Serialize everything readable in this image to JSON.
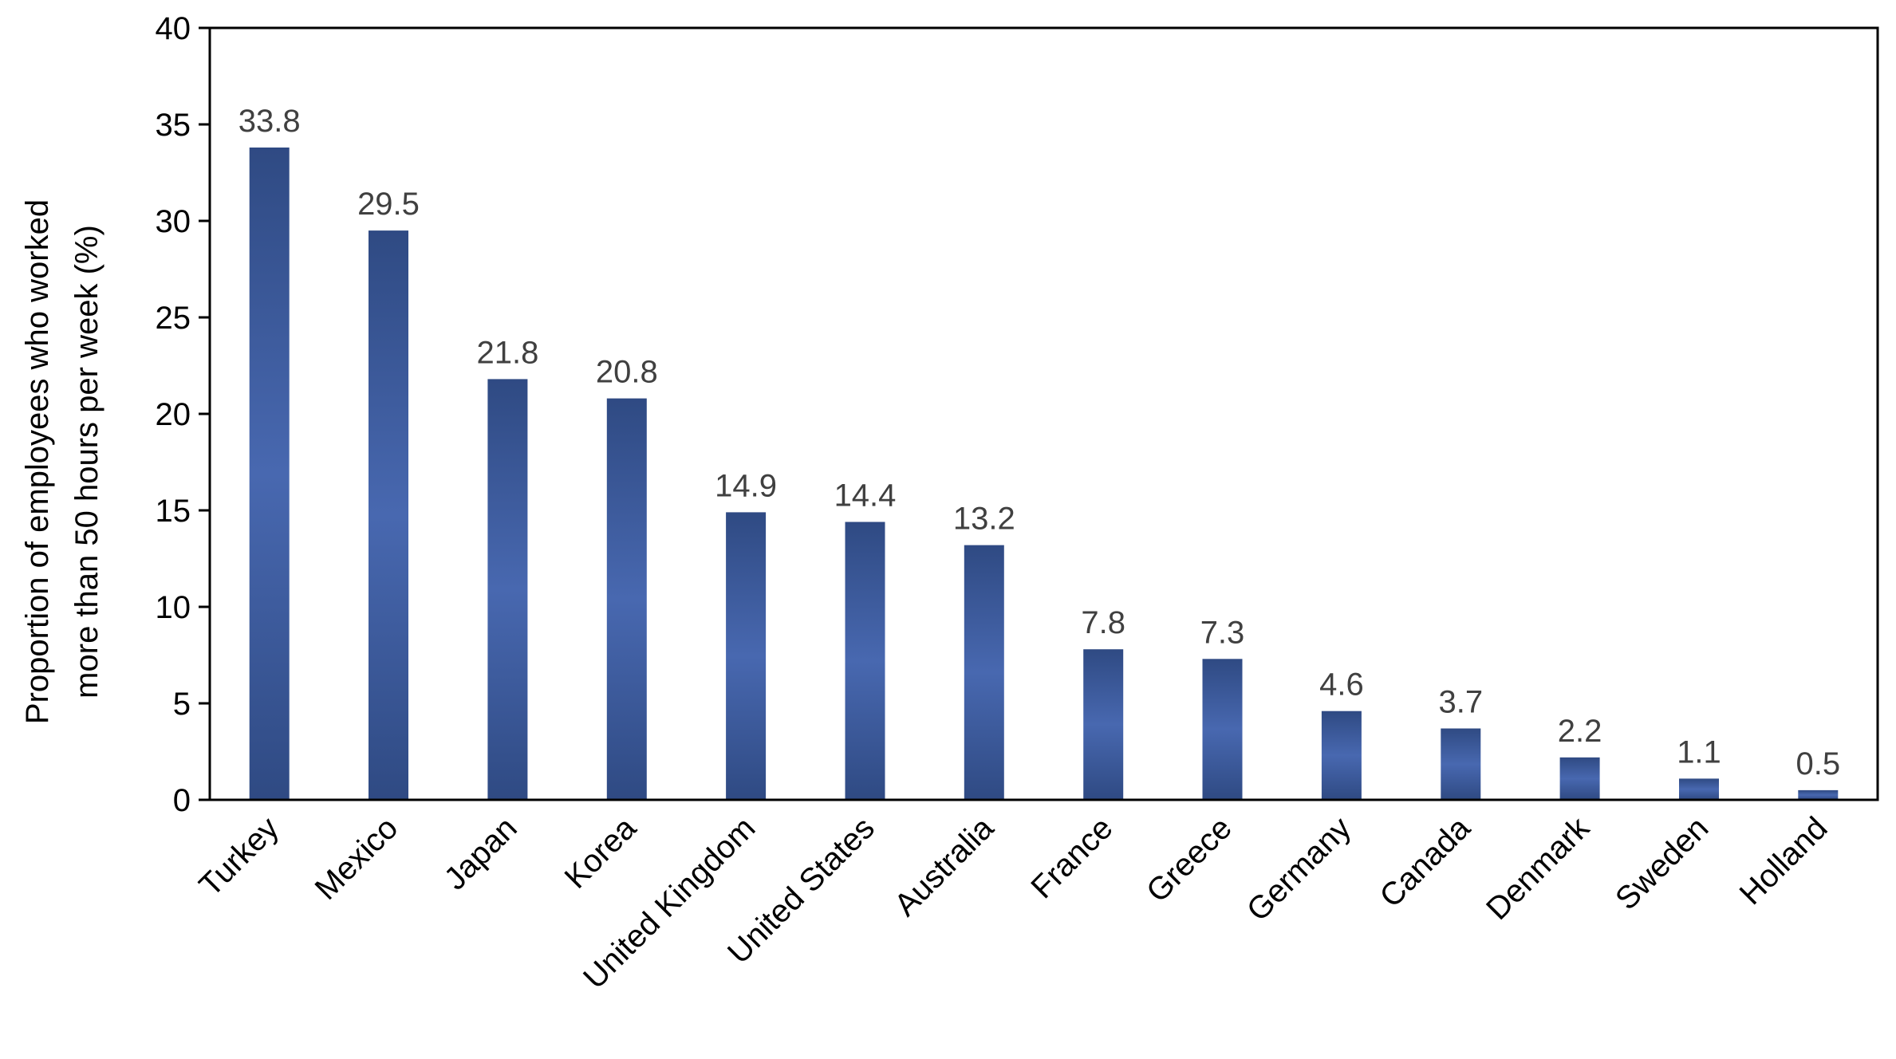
{
  "chart_data": {
    "type": "bar",
    "ylabel_lines": [
      "Proportion of employees who worked",
      "more than 50 hours per week (%)"
    ],
    "categories": [
      "Turkey",
      "Mexico",
      "Japan",
      "Korea",
      "United Kingdom",
      "United States",
      "Australia",
      "France",
      "Greece",
      "Germany",
      "Canada",
      "Denmark",
      "Sweden",
      "Holland"
    ],
    "values": [
      33.8,
      29.5,
      21.8,
      20.8,
      14.9,
      14.4,
      13.2,
      7.8,
      7.3,
      4.6,
      3.7,
      2.2,
      1.1,
      0.5
    ],
    "data_labels": [
      "33.8",
      "29.5",
      "21.8",
      "20.8",
      "14.9",
      "14.4",
      "13.2",
      "7.8",
      "7.3",
      "4.6",
      "3.7",
      "2.2",
      "1.1",
      "0.5"
    ],
    "ylim": [
      0,
      40
    ],
    "yticks": [
      0,
      5,
      10,
      15,
      20,
      25,
      30,
      35,
      40
    ],
    "grid": false,
    "legend": "none",
    "bar_colors": {
      "edge": "#2f4a83",
      "center": "#4868b0"
    }
  }
}
